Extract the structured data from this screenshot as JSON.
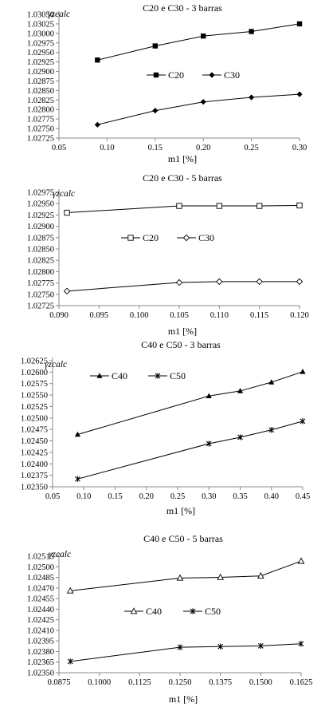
{
  "chart_data": [
    {
      "type": "line",
      "title": "C20 e C30 - 3 barras",
      "ylabel": "γzcalc",
      "xlabel": "m1 [%]",
      "xlim": [
        0.05,
        0.3
      ],
      "xticks": [
        "0.05",
        "0.10",
        "0.15",
        "0.20",
        "0.25",
        "0.30"
      ],
      "ylim": [
        1.02725,
        1.0305
      ],
      "yticks": [
        "1.02725",
        "1.02750",
        "1.02775",
        "1.02800",
        "1.02825",
        "1.02850",
        "1.02875",
        "1.02900",
        "1.02925",
        "1.02950",
        "1.02975",
        "1.03000",
        "1.03025",
        "1.03050"
      ],
      "grid": false,
      "legend": "center",
      "series": [
        {
          "name": "C20",
          "marker": "square-filled",
          "x": [
            0.09,
            0.15,
            0.2,
            0.25,
            0.3
          ],
          "values": [
            1.0293,
            1.02967,
            1.02993,
            1.03005,
            1.03025
          ]
        },
        {
          "name": "C30",
          "marker": "diamond-filled",
          "x": [
            0.09,
            0.15,
            0.2,
            0.25,
            0.3
          ],
          "values": [
            1.0276,
            1.02797,
            1.0282,
            1.02832,
            1.0284
          ]
        }
      ]
    },
    {
      "type": "line",
      "title": "C20 e C30 - 5 barras",
      "ylabel": "γzcalc",
      "xlabel": "m1 [%]",
      "xlim": [
        0.09,
        0.12
      ],
      "xticks": [
        "0.090",
        "0.095",
        "0.100",
        "0.105",
        "0.110",
        "0.115",
        "0.120"
      ],
      "ylim": [
        1.02725,
        1.02975
      ],
      "yticks": [
        "1.02725",
        "1.02750",
        "1.02775",
        "1.02800",
        "1.02825",
        "1.02850",
        "1.02875",
        "1.02900",
        "1.02925",
        "1.02950",
        "1.02975"
      ],
      "grid": false,
      "legend": "center",
      "series": [
        {
          "name": "C20",
          "marker": "square-open",
          "x": [
            0.091,
            0.105,
            0.11,
            0.115,
            0.12
          ],
          "values": [
            1.0293,
            1.02945,
            1.02945,
            1.02945,
            1.02946
          ]
        },
        {
          "name": "C30",
          "marker": "diamond-open",
          "x": [
            0.091,
            0.105,
            0.11,
            0.115,
            0.12
          ],
          "values": [
            1.02757,
            1.02776,
            1.02778,
            1.02778,
            1.02778
          ]
        }
      ]
    },
    {
      "type": "line",
      "title": "C40 e C50 - 3 barras",
      "ylabel": "γzcalc",
      "xlabel": "m1 [%]",
      "xlim": [
        0.05,
        0.45
      ],
      "xticks": [
        "0.05",
        "0.10",
        "0.15",
        "0.20",
        "0.25",
        "0.30",
        "0.35",
        "0.40",
        "0.45"
      ],
      "ylim": [
        1.0235,
        1.02625
      ],
      "yticks": [
        "1.02350",
        "1.02375",
        "1.02400",
        "1.02425",
        "1.02450",
        "1.02475",
        "1.02500",
        "1.02525",
        "1.02550",
        "1.02575",
        "1.02600",
        "1.02625"
      ],
      "grid": false,
      "legend": "top-center",
      "series": [
        {
          "name": "C40",
          "marker": "triangle-filled",
          "x": [
            0.09,
            0.3,
            0.35,
            0.4,
            0.45
          ],
          "values": [
            1.02464,
            1.02548,
            1.02559,
            1.02578,
            1.02601
          ]
        },
        {
          "name": "C50",
          "marker": "star",
          "x": [
            0.09,
            0.3,
            0.35,
            0.4,
            0.45
          ],
          "values": [
            1.02367,
            1.02444,
            1.02458,
            1.02474,
            1.02493
          ]
        }
      ]
    },
    {
      "type": "line",
      "title": "C40 e C50 - 5 barras",
      "ylabel": "γzcalc",
      "xlabel": "m1 [%]",
      "xlim": [
        0.0875,
        0.1625
      ],
      "xticks": [
        "0.0875",
        "0.1000",
        "0.1125",
        "0.1250",
        "0.1375",
        "0.1500",
        "0.1625"
      ],
      "ylim": [
        1.0235,
        1.02515
      ],
      "yticks": [
        "1.02350",
        "1.02365",
        "1.02380",
        "1.02395",
        "1.02410",
        "1.02425",
        "1.02440",
        "1.02455",
        "1.02470",
        "1.02485",
        "1.02500",
        "1.02515"
      ],
      "grid": false,
      "legend": "center",
      "series": [
        {
          "name": "C40",
          "marker": "triangle-open",
          "x": [
            0.091,
            0.125,
            0.1375,
            0.15,
            0.1625
          ],
          "values": [
            1.02466,
            1.02484,
            1.02485,
            1.02487,
            1.02508
          ]
        },
        {
          "name": "C50",
          "marker": "star",
          "x": [
            0.091,
            0.125,
            0.1375,
            0.15,
            0.1625
          ],
          "values": [
            1.02366,
            1.02386,
            1.02387,
            1.02388,
            1.02391
          ]
        }
      ]
    }
  ]
}
